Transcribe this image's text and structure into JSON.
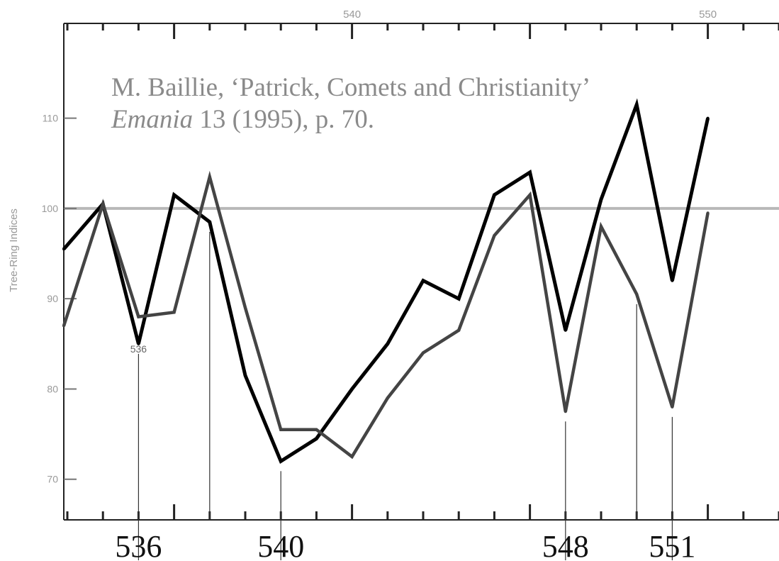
{
  "chart_data": {
    "type": "line",
    "annotation": {
      "line1": "M. Baillie, ‘Patrick, Comets and Christianity’",
      "line2_italic": "Emania",
      "line2_rest": " 13 (1995), p. 70."
    },
    "ylabel": "Tree-Ring Indices",
    "top_ticks": [
      {
        "x": 540,
        "label": "540"
      },
      {
        "x": 550,
        "label": "550"
      }
    ],
    "y_ticks": [
      {
        "y": 110,
        "label": "110"
      },
      {
        "y": 100,
        "label": "100"
      },
      {
        "y": 90,
        "label": "90"
      },
      {
        "y": 80,
        "label": "80"
      },
      {
        "y": 70,
        "label": "70"
      }
    ],
    "xlim": [
      531.9,
      552.0
    ],
    "ylim": [
      65.5,
      120.5
    ],
    "reference_line_y": 100,
    "series": [
      {
        "color": "#000000",
        "points": [
          [
            531.9,
            95.5
          ],
          [
            533.0,
            100.5
          ],
          [
            534.0,
            85.0
          ],
          [
            535.0,
            101.5
          ],
          [
            536.0,
            98.5
          ],
          [
            537.0,
            81.5
          ],
          [
            538.0,
            72.0
          ],
          [
            539.0,
            74.5
          ],
          [
            540.0,
            80.0
          ],
          [
            541.0,
            85.0
          ],
          [
            542.0,
            92.0
          ],
          [
            543.0,
            90.0
          ],
          [
            544.0,
            101.5
          ],
          [
            545.0,
            104.0
          ],
          [
            546.0,
            86.5
          ],
          [
            547.0,
            101.0
          ],
          [
            548.0,
            111.5
          ],
          [
            549.0,
            92.0
          ],
          [
            550.0,
            110.0
          ]
        ]
      },
      {
        "color": "#444444",
        "points": [
          [
            531.9,
            87.0
          ],
          [
            533.0,
            100.5
          ],
          [
            534.0,
            88.0
          ],
          [
            535.0,
            88.5
          ],
          [
            536.0,
            103.5
          ],
          [
            537.0,
            89.0
          ],
          [
            538.0,
            75.5
          ],
          [
            539.0,
            75.5
          ],
          [
            540.0,
            72.5
          ],
          [
            541.0,
            79.0
          ],
          [
            542.0,
            84.0
          ],
          [
            543.0,
            86.5
          ],
          [
            544.0,
            97.0
          ],
          [
            545.0,
            101.5
          ],
          [
            546.0,
            77.5
          ],
          [
            547.0,
            98.0
          ],
          [
            548.0,
            90.5
          ],
          [
            549.0,
            78.0
          ],
          [
            550.0,
            99.5
          ]
        ]
      }
    ],
    "markers": [
      {
        "x": 534.0,
        "label": "536",
        "small_label": "536"
      },
      {
        "x": 536.0,
        "label": "",
        "small_label": ""
      },
      {
        "x": 538.0,
        "label": "540",
        "small_label": ""
      },
      {
        "x": 546.0,
        "label": "548",
        "small_label": ""
      },
      {
        "x": 548.0,
        "label": "",
        "small_label": ""
      },
      {
        "x": 549.0,
        "label": "551",
        "small_label": ""
      }
    ],
    "colors": {
      "frame": "#222222",
      "reference_line": "#b8b8b8",
      "annotation_text": "#8a8a8a",
      "tick_label": "#999999"
    }
  }
}
